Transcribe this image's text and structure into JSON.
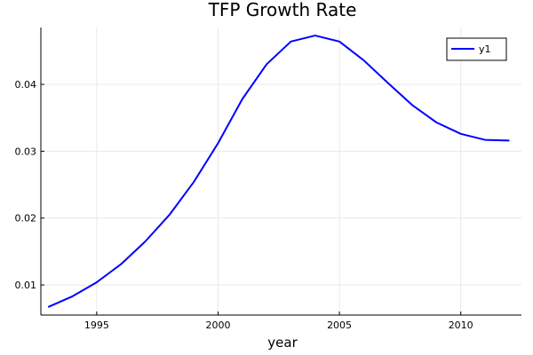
{
  "chart_data": {
    "type": "line",
    "title": "TFP Growth Rate",
    "xlabel": "year",
    "ylabel": "",
    "xlim": [
      1992.7,
      2012.5
    ],
    "ylim": [
      0.0055,
      0.0485
    ],
    "xticks": [
      1995,
      2000,
      2005,
      2010
    ],
    "yticks": [
      0.01,
      0.02,
      0.03,
      0.04
    ],
    "xtick_labels": [
      "1995",
      "2000",
      "2005",
      "2010"
    ],
    "ytick_labels": [
      "0.01",
      "0.02",
      "0.03",
      "0.04"
    ],
    "grid": true,
    "legend_position": "top-right",
    "series": [
      {
        "name": "y1",
        "color": "#0000ff",
        "x": [
          1993,
          1994,
          1995,
          1996,
          1997,
          1998,
          1999,
          2000,
          2001,
          2002,
          2003,
          2004,
          2005,
          2006,
          2007,
          2008,
          2009,
          2010,
          2011,
          2012
        ],
        "y": [
          0.0067,
          0.0083,
          0.0104,
          0.0131,
          0.0165,
          0.0205,
          0.0254,
          0.0312,
          0.0378,
          0.043,
          0.0464,
          0.0473,
          0.0464,
          0.0436,
          0.0402,
          0.0369,
          0.0343,
          0.0326,
          0.0317,
          0.0316
        ]
      }
    ]
  }
}
